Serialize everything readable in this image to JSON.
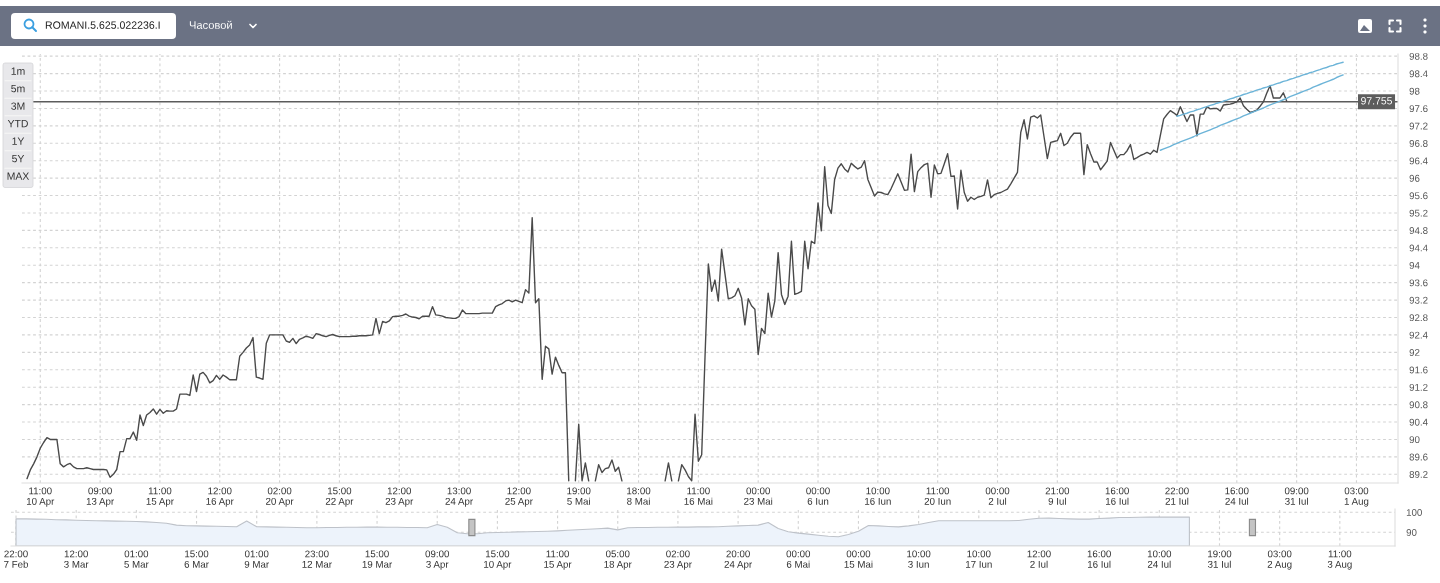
{
  "chart_data": [
    {
      "type": "line",
      "ylim": [
        89.0,
        98.85
      ],
      "grid": true,
      "categories": [
        null,
        null,
        null,
        null,
        null,
        "11:00\n10 Apr",
        null,
        null,
        null,
        null,
        null,
        null,
        null,
        null,
        null,
        null,
        null,
        null,
        null,
        null,
        null,
        null,
        null,
        "09:00\n13 Apr",
        null,
        null,
        null,
        null,
        null,
        null,
        null,
        null,
        null,
        null,
        null,
        null,
        null,
        null,
        null,
        null,
        null,
        "11:00\n15 Apr",
        null,
        null,
        null,
        null,
        null,
        null,
        null,
        null,
        null,
        null,
        null,
        null,
        null,
        null,
        null,
        null,
        null,
        "12:00\n16 Apr",
        null,
        null,
        null,
        null,
        null,
        null,
        null,
        null,
        null,
        null,
        null,
        null,
        null,
        null,
        null,
        null,
        null,
        "02:00\n20 Apr",
        null,
        null,
        null,
        null,
        null,
        null,
        null,
        null,
        null,
        null,
        null,
        null,
        null,
        null,
        null,
        null,
        null,
        "15:00\n22 Apr",
        null,
        null,
        null,
        null,
        null,
        null,
        null,
        null,
        null,
        null,
        null,
        null,
        null,
        null,
        null,
        null,
        null,
        "12:00\n23 Apr",
        null,
        null,
        null,
        null,
        null,
        null,
        null,
        null,
        null,
        null,
        null,
        null,
        null,
        null,
        null,
        null,
        null,
        "13:00\n24 Apr",
        null,
        null,
        null,
        null,
        null,
        null,
        null,
        null,
        null,
        null,
        null,
        null,
        null,
        null,
        null,
        null,
        null,
        "12:00\n25 Apr",
        null,
        null,
        null,
        null,
        null,
        null,
        null,
        null,
        null,
        null,
        null,
        null,
        null,
        null,
        null,
        null,
        null,
        "19:00\n5 Mai",
        null,
        null,
        null,
        null,
        null,
        null,
        null,
        null,
        null,
        null,
        null,
        null,
        null,
        null,
        null,
        null,
        null,
        "18:00\n8 Mai",
        null,
        null,
        null,
        null,
        null,
        null,
        null,
        null,
        null,
        null,
        null,
        null,
        null,
        null,
        null,
        null,
        null,
        "11:00\n16 Mai",
        null,
        null,
        null,
        null,
        null,
        null,
        null,
        null,
        null,
        null,
        null,
        null,
        null,
        null,
        null,
        null,
        null,
        "00:00\n23 Mai",
        null,
        null,
        null,
        null,
        null,
        null,
        null,
        null,
        null,
        null,
        null,
        null,
        null,
        null,
        null,
        null,
        null,
        "00:00\n6 Iun",
        null,
        null,
        null,
        null,
        null,
        null,
        null,
        null,
        null,
        null,
        null,
        null,
        null,
        null,
        null,
        null,
        null,
        "10:00\n16 Iun",
        null,
        null,
        null,
        null,
        null,
        null,
        null,
        null,
        null,
        null,
        null,
        null,
        null,
        null,
        null,
        null,
        null,
        "11:00\n20 Iun",
        null,
        null,
        null,
        null,
        null,
        null,
        null,
        null,
        null,
        null,
        null,
        null,
        null,
        null,
        null,
        null,
        null,
        "00:00\n2 Iul",
        null,
        null,
        null,
        null,
        null,
        null,
        null,
        null,
        null,
        null,
        null,
        null,
        null,
        null,
        null,
        null,
        null,
        "21:00\n9 Iul",
        null,
        null,
        null,
        null,
        null,
        null,
        null,
        null,
        null,
        null,
        null,
        null,
        null,
        null,
        null,
        null,
        null,
        "16:00\n16 Iul",
        null,
        null,
        null,
        null,
        null,
        null,
        null,
        null,
        null,
        null,
        null,
        null,
        null,
        null,
        null,
        null,
        null,
        "22:00\n21 Iul",
        null,
        null,
        null,
        null,
        null,
        null,
        null,
        null,
        null,
        null,
        null,
        null,
        null,
        null,
        null,
        null,
        null,
        "16:00\n24 Iul",
        null,
        null,
        null,
        null,
        null,
        null,
        null,
        null,
        null,
        null,
        null,
        null,
        null,
        null,
        null,
        null,
        null,
        "09:00\n31 Iul",
        null,
        null,
        null,
        null,
        null,
        null,
        null,
        null,
        null,
        null,
        null,
        null,
        null,
        null,
        null,
        null,
        null,
        "03:00\n1 Aug",
        null,
        null,
        null,
        null,
        null,
        null,
        null,
        null,
        null,
        null,
        null,
        null
      ],
      "yticks": [
        89.2,
        89.6,
        90,
        90.4,
        90.8,
        91.2,
        91.6,
        92,
        92.4,
        92.8,
        93.2,
        93.6,
        94,
        94.4,
        94.8,
        95.2,
        95.6,
        96,
        96.4,
        96.8,
        97.2,
        97.6,
        98,
        98.4,
        98.8
      ],
      "series": [
        {
          "type": "line",
          "color": "#4a4a4a",
          "values": [
            null,
            89.1,
            89.3,
            89.44,
            89.6,
            89.8,
            89.93,
            90.04,
            90.0,
            90.0,
            90.0,
            89.44,
            89.37,
            89.42,
            89.45,
            89.37,
            89.33,
            89.33,
            89.33,
            89.35,
            89.33,
            89.31,
            89.31,
            89.31,
            89.31,
            89.3,
            89.13,
            89.2,
            89.31,
            89.72,
            89.72,
            90.02,
            90.02,
            90.17,
            89.98,
            90.56,
            90.32,
            90.56,
            90.62,
            90.7,
            90.58,
            90.69,
            90.6,
            90.66,
            90.65,
            90.65,
            90.7,
            91.04,
            91.04,
            91.04,
            91.01,
            91.48,
            91.1,
            91.5,
            91.54,
            91.45,
            91.3,
            91.35,
            91.47,
            91.38,
            91.48,
            91.43,
            91.37,
            91.37,
            91.37,
            91.91,
            92.0,
            92.1,
            92.17,
            92.34,
            91.43,
            91.41,
            91.38,
            92.21,
            92.4,
            92.4,
            92.4,
            92.4,
            92.4,
            92.26,
            92.23,
            92.32,
            92.2,
            92.3,
            92.33,
            92.37,
            92.35,
            92.32,
            92.43,
            92.41,
            92.38,
            92.36,
            92.39,
            92.41,
            92.38,
            92.36,
            92.36,
            92.36,
            92.36,
            92.37,
            92.37,
            92.38,
            92.38,
            92.38,
            92.39,
            92.4,
            92.78,
            92.43,
            92.71,
            92.68,
            92.72,
            92.82,
            92.83,
            92.83,
            92.85,
            92.88,
            92.83,
            92.81,
            92.8,
            92.77,
            92.83,
            92.83,
            92.83,
            93.05,
            92.86,
            92.85,
            92.83,
            92.8,
            92.79,
            92.78,
            92.78,
            92.82,
            92.97,
            92.89,
            92.89,
            92.89,
            92.89,
            92.89,
            92.9,
            92.9,
            92.9,
            92.9,
            93.05,
            93.09,
            93.12,
            93.18,
            93.2,
            93.16,
            93.2,
            93.17,
            93.14,
            93.44,
            93.36,
            95.09,
            93.14,
            93.23,
            91.38,
            92.14,
            92.08,
            91.5,
            91.89,
            91.7,
            91.53,
            91.53,
            89.05,
            null,
            89.05,
            90.35,
            89.05,
            89.46,
            89.05,
            null,
            89.05,
            89.42,
            89.24,
            89.33,
            89.35,
            89.53,
            89.27,
            89.36,
            89.05,
            null,
            null,
            null,
            null,
            null,
            null,
            null,
            null,
            null,
            null,
            null,
            null,
            89.05,
            89.46,
            89.05,
            null,
            89.05,
            89.42,
            89.3,
            89.15,
            89.05,
            90.58,
            89.5,
            89.65,
            91.9,
            94.03,
            93.4,
            93.66,
            93.18,
            94.37,
            93.8,
            93.23,
            93.25,
            93.3,
            93.47,
            93.25,
            92.63,
            93.23,
            93.07,
            92.99,
            91.95,
            92.55,
            92.43,
            93.36,
            92.81,
            93.18,
            94.29,
            93.33,
            93.1,
            93.29,
            94.55,
            93.33,
            93.36,
            93.4,
            94.55,
            93.92,
            94.55,
            94.5,
            95.43,
            94.79,
            96.26,
            95.37,
            95.19,
            95.97,
            96.23,
            96.33,
            96.21,
            96.14,
            96.34,
            96.27,
            96.21,
            96.25,
            96.4,
            95.97,
            95.78,
            95.59,
            95.68,
            95.67,
            95.64,
            95.62,
            95.76,
            95.93,
            96.1,
            95.91,
            95.72,
            95.73,
            96.55,
            95.69,
            96.15,
            96.24,
            96.31,
            96.34,
            95.56,
            96.3,
            96.1,
            96.11,
            96.33,
            96.56,
            96.04,
            96.05,
            95.29,
            96.18,
            95.67,
            95.47,
            95.56,
            95.51,
            95.56,
            95.58,
            95.61,
            95.96,
            95.55,
            95.62,
            95.65,
            95.67,
            95.71,
            95.75,
            95.87,
            96.0,
            96.13,
            97.05,
            97.34,
            96.9,
            97.4,
            97.43,
            97.38,
            97.45,
            96.95,
            96.45,
            96.82,
            96.84,
            96.86,
            97.03,
            96.75,
            96.8,
            96.94,
            97.03,
            97.03,
            97.03,
            96.08,
            96.77,
            96.56,
            96.37,
            96.37,
            96.19,
            96.29,
            96.39,
            96.82,
            96.64,
            96.46,
            96.54,
            96.54,
            96.63,
            96.77,
            96.43,
            96.47,
            96.52,
            96.55,
            96.59,
            96.55,
            96.64,
            96.59,
            96.98,
            97.36,
            97.46,
            97.55,
            97.5,
            97.44,
            97.64,
            97.47,
            97.3,
            97.45,
            97.45,
            96.97,
            97.47,
            97.47,
            97.64,
            97.59,
            97.6,
            97.6,
            97.54,
            97.68,
            97.69,
            97.7,
            97.72,
            97.75,
            97.84,
            97.66,
            97.58,
            97.51,
            97.53,
            97.56,
            97.65,
            97.75,
            97.95,
            98.12,
            97.84,
            97.84,
            97.84,
            97.96,
            97.77,
            null,
            null,
            null,
            null,
            null,
            null,
            null,
            null,
            null,
            null,
            null,
            null,
            null,
            null,
            null,
            null,
            null,
            null,
            null,
            null,
            null,
            null,
            null,
            null,
            null,
            null,
            null,
            null,
            null,
            null,
            null,
            null,
            null
          ]
        },
        {
          "type": "line",
          "color": "#6cb4d8",
          "values": [
            null,
            null,
            null,
            null,
            null,
            null,
            null,
            null,
            null,
            null,
            null,
            null,
            null,
            null,
            null,
            null,
            null,
            null,
            null,
            null,
            null,
            null,
            null,
            null,
            null,
            null,
            null,
            null,
            null,
            null,
            null,
            null,
            null,
            null,
            null,
            null,
            null,
            null,
            null,
            null,
            null,
            null,
            null,
            null,
            null,
            null,
            null,
            null,
            null,
            null,
            null,
            null,
            null,
            null,
            null,
            null,
            null,
            null,
            null,
            null,
            null,
            null,
            null,
            null,
            null,
            null,
            null,
            null,
            null,
            null,
            null,
            null,
            null,
            null,
            null,
            null,
            null,
            null,
            null,
            null,
            null,
            null,
            null,
            null,
            null,
            null,
            null,
            null,
            null,
            null,
            null,
            null,
            null,
            null,
            null,
            null,
            null,
            null,
            null,
            null,
            null,
            null,
            null,
            null,
            null,
            null,
            null,
            null,
            null,
            null,
            null,
            null,
            null,
            null,
            null,
            null,
            null,
            null,
            null,
            null,
            null,
            null,
            null,
            null,
            null,
            null,
            null,
            null,
            null,
            null,
            null,
            null,
            null,
            null,
            null,
            null,
            null,
            null,
            null,
            null,
            null,
            null,
            null,
            null,
            null,
            null,
            null,
            null,
            null,
            null,
            null,
            null,
            null,
            null,
            null,
            null,
            null,
            null,
            null,
            null,
            null,
            null,
            null,
            null,
            null,
            null,
            null,
            null,
            null,
            null,
            null,
            null,
            null,
            null,
            null,
            null,
            null,
            null,
            null,
            null,
            null,
            null,
            null,
            null,
            null,
            null,
            null,
            null,
            null,
            null,
            null,
            null,
            null,
            null,
            null,
            null,
            null,
            null,
            null,
            null,
            null,
            null,
            null,
            null,
            null,
            null,
            null,
            null,
            null,
            null,
            null,
            null,
            null,
            null,
            null,
            null,
            null,
            null,
            null,
            null,
            null,
            null,
            null,
            null,
            null,
            null,
            null,
            null,
            null,
            null,
            null,
            null,
            null,
            null,
            null,
            null,
            null,
            null,
            null,
            null,
            null,
            null,
            null,
            null,
            null,
            null,
            null,
            null,
            null,
            null,
            null,
            null,
            null,
            null,
            null,
            null,
            null,
            null,
            null,
            null,
            null,
            null,
            null,
            null,
            null,
            null,
            null,
            null,
            null,
            null,
            null,
            null,
            null,
            null,
            null,
            null,
            null,
            null,
            null,
            null,
            null,
            null,
            null,
            null,
            null,
            null,
            null,
            null,
            null,
            null,
            null,
            null,
            null,
            null,
            null,
            null,
            null,
            null,
            null,
            null,
            null,
            null,
            null,
            null,
            null,
            null,
            null,
            null,
            null,
            null,
            null,
            null,
            null,
            null,
            null,
            null,
            null,
            null,
            null,
            null,
            null,
            null,
            null,
            null,
            null,
            null,
            null,
            null,
            null,
            null,
            null,
            null,
            null,
            null,
            null,
            null,
            null,
            null,
            null,
            null,
            null,
            null,
            null,
            null,
            null,
            null,
            null,
            97.42,
            97.44,
            97.47,
            97.49,
            97.52,
            97.54,
            97.57,
            97.59,
            97.62,
            97.64,
            97.67,
            97.69,
            97.72,
            97.74,
            97.77,
            97.79,
            97.82,
            97.84,
            97.87,
            97.89,
            97.92,
            97.94,
            97.97,
            97.99,
            98.02,
            98.04,
            98.07,
            98.09,
            98.12,
            98.14,
            98.17,
            98.19,
            98.22,
            98.24,
            98.27,
            98.29,
            98.32,
            98.34,
            98.37,
            98.39,
            98.42,
            98.44,
            98.47,
            98.49,
            98.52,
            98.54,
            98.57,
            98.59,
            98.62,
            98.64,
            98.66,
            null,
            null,
            null,
            null,
            null,
            null,
            null,
            null,
            null,
            null,
            null,
            null,
            null,
            null,
            null,
            null
          ]
        },
        {
          "type": "line",
          "color": "#6cb4d8",
          "values": [
            null,
            null,
            null,
            null,
            null,
            null,
            null,
            null,
            null,
            null,
            null,
            null,
            null,
            null,
            null,
            null,
            null,
            null,
            null,
            null,
            null,
            null,
            null,
            null,
            null,
            null,
            null,
            null,
            null,
            null,
            null,
            null,
            null,
            null,
            null,
            null,
            null,
            null,
            null,
            null,
            null,
            null,
            null,
            null,
            null,
            null,
            null,
            null,
            null,
            null,
            null,
            null,
            null,
            null,
            null,
            null,
            null,
            null,
            null,
            null,
            null,
            null,
            null,
            null,
            null,
            null,
            null,
            null,
            null,
            null,
            null,
            null,
            null,
            null,
            null,
            null,
            null,
            null,
            null,
            null,
            null,
            null,
            null,
            null,
            null,
            null,
            null,
            null,
            null,
            null,
            null,
            null,
            null,
            null,
            null,
            null,
            null,
            null,
            null,
            null,
            null,
            null,
            null,
            null,
            null,
            null,
            null,
            null,
            null,
            null,
            null,
            null,
            null,
            null,
            null,
            null,
            null,
            null,
            null,
            null,
            null,
            null,
            null,
            null,
            null,
            null,
            null,
            null,
            null,
            null,
            null,
            null,
            null,
            null,
            null,
            null,
            null,
            null,
            null,
            null,
            null,
            null,
            null,
            null,
            null,
            null,
            null,
            null,
            null,
            null,
            null,
            null,
            null,
            null,
            null,
            null,
            null,
            null,
            null,
            null,
            null,
            null,
            null,
            null,
            null,
            null,
            null,
            null,
            null,
            null,
            null,
            null,
            null,
            null,
            null,
            null,
            null,
            null,
            null,
            null,
            null,
            null,
            null,
            null,
            null,
            null,
            null,
            null,
            null,
            null,
            null,
            null,
            null,
            null,
            null,
            null,
            null,
            null,
            null,
            null,
            null,
            null,
            null,
            null,
            null,
            null,
            null,
            null,
            null,
            null,
            null,
            null,
            null,
            null,
            null,
            null,
            null,
            null,
            null,
            null,
            null,
            null,
            null,
            null,
            null,
            null,
            null,
            null,
            null,
            null,
            null,
            null,
            null,
            null,
            null,
            null,
            null,
            null,
            null,
            null,
            null,
            null,
            null,
            null,
            null,
            null,
            null,
            null,
            null,
            null,
            null,
            null,
            null,
            null,
            null,
            null,
            null,
            null,
            null,
            null,
            null,
            null,
            null,
            null,
            null,
            null,
            null,
            null,
            null,
            null,
            null,
            null,
            null,
            null,
            null,
            null,
            null,
            null,
            null,
            null,
            null,
            null,
            null,
            null,
            null,
            null,
            null,
            null,
            null,
            null,
            null,
            null,
            null,
            null,
            null,
            null,
            null,
            null,
            null,
            null,
            null,
            null,
            null,
            null,
            null,
            null,
            null,
            null,
            null,
            null,
            null,
            null,
            null,
            null,
            null,
            null,
            null,
            null,
            null,
            null,
            null,
            null,
            null,
            null,
            null,
            null,
            null,
            null,
            null,
            null,
            null,
            null,
            null,
            null,
            null,
            null,
            null,
            null,
            null,
            null,
            null,
            null,
            96.64,
            96.67,
            96.7,
            96.73,
            96.77,
            96.8,
            96.83,
            96.86,
            96.89,
            96.92,
            96.95,
            96.99,
            97.02,
            97.05,
            97.08,
            97.11,
            97.14,
            97.17,
            97.21,
            97.24,
            97.27,
            97.3,
            97.33,
            97.36,
            97.39,
            97.43,
            97.46,
            97.49,
            97.52,
            97.55,
            97.58,
            97.61,
            97.65,
            97.68,
            97.71,
            97.74,
            97.77,
            97.8,
            97.83,
            97.87,
            97.9,
            97.93,
            97.96,
            97.99,
            98.02,
            98.05,
            98.09,
            98.12,
            98.15,
            98.18,
            98.21,
            98.24,
            98.27,
            98.31,
            98.34,
            98.37,
            null,
            null,
            null,
            null,
            null,
            null,
            null,
            null,
            null,
            null,
            null,
            null,
            null,
            null,
            null,
            null
          ]
        }
      ],
      "ref_lines": [
        {
          "axis": "y",
          "value": 97.755,
          "label": "97.755",
          "color": "#5c5c5c"
        }
      ],
      "annotations": [
        "ROMANI.5.625.022236.I",
        "Часовой",
        "1m",
        "5m",
        "3M",
        "YTD",
        "1Y",
        "5Y",
        "MAX"
      ]
    },
    {
      "type": "area",
      "ylim": [
        83.15,
        101.65
      ],
      "grid": true,
      "categories": [
        "22:00\n7 Feb",
        null,
        null,
        null,
        null,
        null,
        "12:00\n3 Mar",
        null,
        null,
        null,
        null,
        null,
        "01:00\n5 Mar",
        null,
        null,
        null,
        null,
        null,
        "15:00\n6 Mar",
        null,
        null,
        null,
        null,
        null,
        "01:00\n9 Mar",
        null,
        null,
        null,
        null,
        null,
        "23:00\n12 Mar",
        null,
        null,
        null,
        null,
        null,
        "15:00\n19 Mar",
        null,
        null,
        null,
        null,
        null,
        "09:00\n3 Apr",
        null,
        null,
        null,
        null,
        null,
        "15:00\n10 Apr",
        null,
        null,
        null,
        null,
        null,
        "11:00\n15 Apr",
        null,
        null,
        null,
        null,
        null,
        "05:00\n18 Apr",
        null,
        null,
        null,
        null,
        null,
        "02:00\n23 Apr",
        null,
        null,
        null,
        null,
        null,
        "20:00\n24 Apr",
        null,
        null,
        null,
        null,
        null,
        "00:00\n6 Mai",
        null,
        null,
        null,
        null,
        null,
        "00:00\n15 Mai",
        null,
        null,
        null,
        null,
        null,
        "10:00\n3 Iun",
        null,
        null,
        null,
        null,
        null,
        "10:00\n17 Iun",
        null,
        null,
        null,
        null,
        null,
        "12:00\n2 Iul",
        null,
        null,
        null,
        null,
        null,
        "16:00\n16 Iul",
        null,
        null,
        null,
        null,
        null,
        "10:00\n24 Iul",
        null,
        null,
        null,
        null,
        null,
        "19:00\n31 Iul",
        null,
        null,
        null,
        null,
        null,
        "03:00\n2 Aug",
        null,
        null,
        null,
        null,
        null,
        "11:00\n3 Aug",
        null,
        null,
        null,
        null,
        null
      ],
      "yticks": [
        90,
        100
      ],
      "series": [
        {
          "color": "#edf3fb",
          "values": [
            96.7,
            96.7,
            96.6,
            96.5,
            96.3,
            96.2,
            96.0,
            95.9,
            95.8,
            95.7,
            95.6,
            95.5,
            95.4,
            95.2,
            94.9,
            94.5,
            93.6,
            93.3,
            93.2,
            93.1,
            93.0,
            92.9,
            92.8,
            95.6,
            92.8,
            92.7,
            92.6,
            92.5,
            92.4,
            92.3,
            92.3,
            92.4,
            92.4,
            92.5,
            92.5,
            92.6,
            92.6,
            92.5,
            92.5,
            92.4,
            92.4,
            92.3,
            93.9,
            92.5,
            89.8,
            89.3,
            89.3,
            89.8,
            89.9,
            90.0,
            90.2,
            90.3,
            90.4,
            90.5,
            90.7,
            91.0,
            91.3,
            91.5,
            91.8,
            92.1,
            91.2,
            92.3,
            92.4,
            92.4,
            92.5,
            92.5,
            92.6,
            92.6,
            92.7,
            92.7,
            92.8,
            93.0,
            93.2,
            93.4,
            93.6,
            94.9,
            91.9,
            90.3,
            89.6,
            89.1,
            88.5,
            88.0,
            87.8,
            88.9,
            90.5,
            93.4,
            93.2,
            92.9,
            92.7,
            93.2,
            93.9,
            94.9,
            95.8,
            95.8,
            95.8,
            95.8,
            95.8,
            95.8,
            95.8,
            95.8,
            95.9,
            96.5,
            97.0,
            97.1,
            96.9,
            96.7,
            96.6,
            96.6,
            96.9,
            97.1,
            97.4,
            97.4,
            97.5,
            97.6,
            97.6,
            97.6,
            97.6,
            97.6,
            null,
            null,
            null,
            null,
            null,
            null,
            null,
            null,
            null,
            null,
            null,
            null,
            null,
            null,
            null,
            null,
            null,
            null,
            null,
            null
          ]
        }
      ]
    }
  ]
}
